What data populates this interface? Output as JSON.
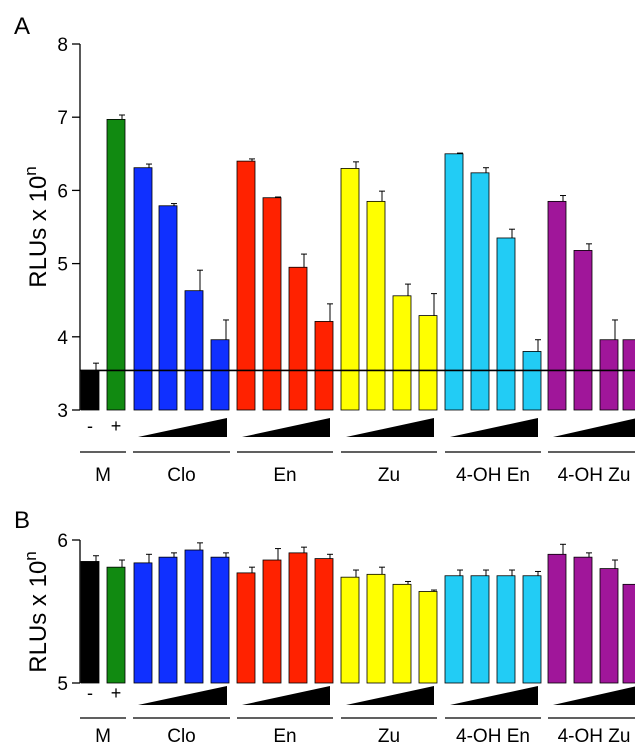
{
  "panel_labels": [
    "A",
    "B"
  ],
  "y_unit_text": "RLUs x 10",
  "y_unit_sup": "n",
  "colors": {
    "control_neg": "#000000",
    "control_pos": "#118a11",
    "Clo": "#1030ff",
    "En": "#ff2200",
    "Zu": "#ffff00",
    "4-OH En": "#22ccf5",
    "4-OH Zu": "#a0169a"
  },
  "chart_data": [
    {
      "type": "bar",
      "panel": "A",
      "ylabel": "RLUs x 10^n",
      "ylim": [
        3,
        8
      ],
      "yticks": [
        3,
        4,
        5,
        6,
        7,
        8
      ],
      "grid": false,
      "reference_line": 3.54,
      "groups": [
        {
          "label": "M",
          "ticks": [
            "-",
            "+"
          ],
          "dose_wedge": false
        },
        {
          "label": "Clo",
          "dose_wedge": true
        },
        {
          "label": "En",
          "dose_wedge": true
        },
        {
          "label": "Zu",
          "dose_wedge": true
        },
        {
          "label": "4-OH En",
          "dose_wedge": true
        },
        {
          "label": "4-OH Zu",
          "dose_wedge": true
        }
      ],
      "series": [
        {
          "group": "M",
          "color_key": "control_neg",
          "values": [
            3.54
          ],
          "errors": [
            0.1
          ]
        },
        {
          "group": "M",
          "color_key": "control_pos",
          "values": [
            6.97
          ],
          "errors": [
            0.06
          ]
        },
        {
          "group": "Clo",
          "color_key": "Clo",
          "values": [
            6.31,
            5.79,
            4.63,
            3.96
          ],
          "errors": [
            0.05,
            0.03,
            0.28,
            0.27
          ]
        },
        {
          "group": "En",
          "color_key": "En",
          "values": [
            6.4,
            5.9,
            4.95,
            4.21
          ],
          "errors": [
            0.03,
            0.01,
            0.18,
            0.24
          ]
        },
        {
          "group": "Zu",
          "color_key": "Zu",
          "values": [
            6.3,
            5.85,
            4.56,
            4.29
          ],
          "errors": [
            0.09,
            0.14,
            0.16,
            0.3
          ]
        },
        {
          "group": "4-OH En",
          "color_key": "4-OH En",
          "values": [
            6.5,
            6.24,
            5.35,
            3.8
          ],
          "errors": [
            0.01,
            0.07,
            0.12,
            0.16
          ]
        },
        {
          "group": "4-OH Zu",
          "color_key": "4-OH Zu",
          "values": [
            5.85,
            5.18,
            3.96,
            3.96
          ],
          "errors": [
            0.08,
            0.09,
            0.27,
            0.17
          ]
        }
      ]
    },
    {
      "type": "bar",
      "panel": "B",
      "ylabel": "RLUs x 10^n",
      "ylim": [
        5,
        6
      ],
      "yticks": [
        5,
        6
      ],
      "grid": false,
      "groups": [
        {
          "label": "M",
          "ticks": [
            "-",
            "+"
          ],
          "dose_wedge": false
        },
        {
          "label": "Clo",
          "dose_wedge": true
        },
        {
          "label": "En",
          "dose_wedge": true
        },
        {
          "label": "Zu",
          "dose_wedge": true
        },
        {
          "label": "4-OH En",
          "dose_wedge": true
        },
        {
          "label": "4-OH Zu",
          "dose_wedge": true
        }
      ],
      "series": [
        {
          "group": "M",
          "color_key": "control_neg",
          "values": [
            5.85
          ],
          "errors": [
            0.04
          ]
        },
        {
          "group": "M",
          "color_key": "control_pos",
          "values": [
            5.81
          ],
          "errors": [
            0.05
          ]
        },
        {
          "group": "Clo",
          "color_key": "Clo",
          "values": [
            5.84,
            5.88,
            5.93,
            5.88
          ],
          "errors": [
            0.06,
            0.03,
            0.05,
            0.03
          ]
        },
        {
          "group": "En",
          "color_key": "En",
          "values": [
            5.77,
            5.86,
            5.91,
            5.87
          ],
          "errors": [
            0.04,
            0.08,
            0.04,
            0.03
          ]
        },
        {
          "group": "Zu",
          "color_key": "Zu",
          "values": [
            5.74,
            5.76,
            5.69,
            5.64
          ],
          "errors": [
            0.05,
            0.05,
            0.02,
            0.01
          ]
        },
        {
          "group": "4-OH En",
          "color_key": "4-OH En",
          "values": [
            5.75,
            5.75,
            5.75,
            5.75
          ],
          "errors": [
            0.04,
            0.04,
            0.04,
            0.03
          ]
        },
        {
          "group": "4-OH Zu",
          "color_key": "4-OH Zu",
          "values": [
            5.9,
            5.88,
            5.8,
            5.69
          ],
          "errors": [
            0.07,
            0.03,
            0.06,
            0.06
          ]
        }
      ]
    }
  ]
}
